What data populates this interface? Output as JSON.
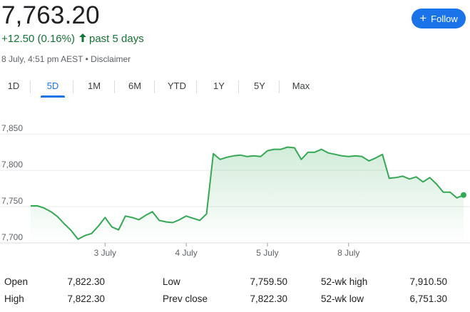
{
  "quote": {
    "price": "7,763.20",
    "change": "+12.50 (0.16%)",
    "period": "past 5 days",
    "timestamp": "8 July, 4:51 pm AEST",
    "separator": "•",
    "disclaimer": "Disclaimer",
    "change_color": "#137333",
    "arrow_icon": "arrow-up-icon"
  },
  "follow_button": {
    "label": "Follow",
    "icon": "plus-icon",
    "color": "#1a73e8"
  },
  "tabs": [
    {
      "label": "1D",
      "active": false
    },
    {
      "label": "5D",
      "active": true
    },
    {
      "label": "1M",
      "active": false
    },
    {
      "label": "6M",
      "active": false
    },
    {
      "label": "YTD",
      "active": false
    },
    {
      "label": "1Y",
      "active": false
    },
    {
      "label": "5Y",
      "active": false
    },
    {
      "label": "Max",
      "active": false
    }
  ],
  "chart_data": {
    "type": "line",
    "y_ticks": [
      "7,850",
      "7,800",
      "7,750",
      "7,700"
    ],
    "y_tick_values": [
      7850,
      7800,
      7750,
      7700
    ],
    "ylim": [
      7700,
      7860
    ],
    "x_tick_labels": [
      "3 July",
      "4 July",
      "5 July",
      "8 July"
    ],
    "x_tick_index": [
      11,
      23,
      35,
      47
    ],
    "line_color": "#34a853",
    "grid": true,
    "series": [
      {
        "values": [
          7751,
          7751,
          7748,
          7743,
          7736,
          7726,
          7717,
          7705,
          7710,
          7713,
          7723,
          7735,
          7722,
          7718,
          7737,
          7735,
          7732,
          7738,
          7743,
          7731,
          7729,
          7728,
          7732,
          7737,
          7734,
          7731,
          7740,
          7823,
          7815,
          7818,
          7820,
          7821,
          7819,
          7820,
          7819,
          7827,
          7829,
          7829,
          7832,
          7831,
          7815,
          7825,
          7825,
          7829,
          7824,
          7822,
          7820,
          7819,
          7820,
          7819,
          7813,
          7817,
          7822,
          7789,
          7790,
          7792,
          7788,
          7791,
          7784,
          7790,
          7781,
          7770,
          7770,
          7762,
          7766
        ]
      }
    ]
  },
  "stats": [
    {
      "label": "Open",
      "value": "7,822.30"
    },
    {
      "label": "High",
      "value": "7,822.30"
    },
    {
      "label": "Low",
      "value": "7,759.50"
    },
    {
      "label": "Prev close",
      "value": "7,822.30"
    },
    {
      "label": "52-wk high",
      "value": "7,910.50"
    },
    {
      "label": "52-wk low",
      "value": "6,751.30"
    }
  ]
}
